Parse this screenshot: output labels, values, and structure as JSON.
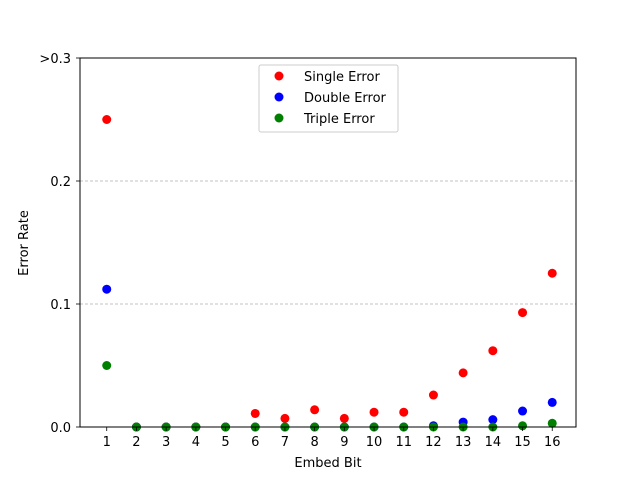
{
  "chart_data": {
    "type": "scatter",
    "xlabel": "Embed Bit",
    "ylabel": "Error Rate",
    "x": [
      1,
      2,
      3,
      4,
      5,
      6,
      7,
      8,
      9,
      10,
      11,
      12,
      13,
      14,
      15,
      16
    ],
    "x_ticks": [
      "1",
      "2",
      "3",
      "4",
      "5",
      "6",
      "7",
      "8",
      "9",
      "10",
      "11",
      "12",
      "13",
      "14",
      "15",
      "16"
    ],
    "xlim": [
      0.1,
      16.8
    ],
    "ylim": [
      0,
      0.3
    ],
    "y_ticks": [
      {
        "value": 0,
        "label": "0.0"
      },
      {
        "value": 0.1,
        "label": "0.1"
      },
      {
        "value": 0.2,
        "label": "0.2"
      },
      {
        "value": 0.3,
        "label": ">0.3"
      }
    ],
    "grid": "horizontal dashed at 0.1 and 0.2",
    "legend_position": "top-center",
    "series": [
      {
        "name": "Single Error",
        "color": "#ff0000",
        "values": [
          0.25,
          0.0,
          0.0,
          0.0,
          0.0,
          0.011,
          0.007,
          0.014,
          0.007,
          0.012,
          0.012,
          0.026,
          0.044,
          0.062,
          0.093,
          0.125
        ]
      },
      {
        "name": "Double Error",
        "color": "#0000ff",
        "values": [
          0.112,
          0.0,
          0.0,
          0.0,
          0.0,
          0.0,
          0.0,
          0.0,
          0.0,
          0.0,
          0.0,
          0.001,
          0.004,
          0.006,
          0.013,
          0.02
        ]
      },
      {
        "name": "Triple Error",
        "color": "#008000",
        "values": [
          0.05,
          0.0,
          0.0,
          0.0,
          0.0,
          0.0,
          0.0,
          0.0,
          0.0,
          0.0,
          0.0,
          0.0,
          0.0,
          0.0,
          0.001,
          0.003
        ]
      }
    ]
  }
}
